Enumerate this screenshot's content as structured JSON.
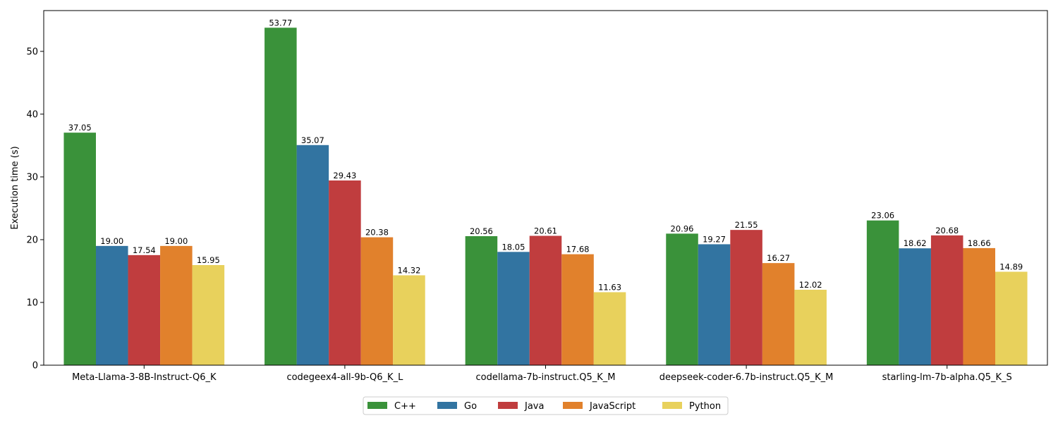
{
  "chart_data": {
    "type": "bar",
    "title": "",
    "xlabel": "",
    "ylabel": "Execution time (s)",
    "ylim": [
      0,
      56.5
    ],
    "yticks": [
      0,
      10,
      20,
      30,
      40,
      50
    ],
    "grid": false,
    "legend_position": "bottom-center",
    "categories": [
      "Meta-Llama-3-8B-Instruct-Q6_K",
      "codegeex4-all-9b-Q6_K_L",
      "codellama-7b-instruct.Q5_K_M",
      "deepseek-coder-6.7b-instruct.Q5_K_M",
      "starling-lm-7b-alpha.Q5_K_S"
    ],
    "series": [
      {
        "name": "C++",
        "color": "#3a923a",
        "values": [
          37.05,
          53.77,
          20.56,
          20.96,
          23.06
        ],
        "labels": [
          "37.05",
          "53.77",
          "20.56",
          "20.96",
          "23.06"
        ]
      },
      {
        "name": "Go",
        "color": "#3274a1",
        "values": [
          19.0,
          35.07,
          18.05,
          19.27,
          18.62
        ],
        "labels": [
          "19.00",
          "35.07",
          "18.05",
          "19.27",
          "18.62"
        ]
      },
      {
        "name": "Java",
        "color": "#c03d3e",
        "values": [
          17.54,
          29.43,
          20.61,
          21.55,
          20.68
        ],
        "labels": [
          "17.54",
          "29.43",
          "20.61",
          "21.55",
          "20.68"
        ]
      },
      {
        "name": "JavaScript",
        "color": "#e1812c",
        "values": [
          19.0,
          20.38,
          17.68,
          16.27,
          18.66
        ],
        "labels": [
          "19.00",
          "20.38",
          "17.68",
          "16.27",
          "18.66"
        ]
      },
      {
        "name": "Python",
        "color": "#e8d15c",
        "values": [
          15.95,
          14.32,
          11.63,
          12.02,
          14.89
        ],
        "labels": [
          "15.95",
          "14.32",
          "11.63",
          "12.02",
          "14.89"
        ]
      }
    ]
  }
}
